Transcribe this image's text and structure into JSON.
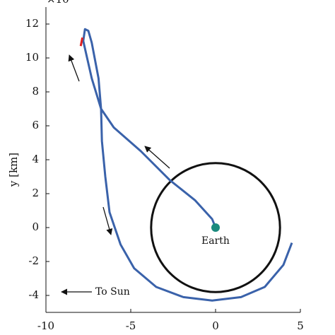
{
  "chart_data": {
    "type": "line",
    "exponent_label": "×10",
    "ylabel": "y [km]",
    "annotations": {
      "earth": "Earth",
      "sun": "To Sun"
    },
    "xlim": [
      -10,
      5
    ],
    "ylim": [
      -5,
      13
    ],
    "xticks": [
      -10,
      -5,
      0,
      5
    ],
    "yticks": [
      -4,
      -2,
      0,
      2,
      4,
      6,
      8,
      10,
      12
    ],
    "series": [
      {
        "color": "#3a62aa",
        "x": [
          0,
          -0.2,
          -1.2,
          -2.7,
          -4.4,
          -6,
          -6.75,
          -7.3,
          -7.8,
          -7.7,
          -7.5,
          -7.3,
          -6.9,
          -6.75,
          -6.7,
          -6.5,
          -6.25,
          -5.6,
          -4.8,
          -3.5,
          -1.9,
          -0.2,
          1.5,
          2.9,
          4,
          4.5
        ],
        "y": [
          0,
          0.5,
          1.6,
          2.8,
          4.5,
          5.9,
          7,
          8.8,
          11,
          11.7,
          11.6,
          10.9,
          8.8,
          7,
          5.1,
          3,
          0.9,
          -1,
          -2.4,
          -3.5,
          -4.1,
          -4.3,
          -4.1,
          -3.5,
          -2.2,
          -0.9
        ]
      }
    ],
    "highlight": {
      "color": "#e02020",
      "x": [
        -7.95,
        -7.85
      ],
      "y": [
        10.7,
        11.2
      ]
    },
    "circle": {
      "color": "#111111",
      "radius": 3.8
    },
    "earth_color": "#1a8a7e"
  }
}
